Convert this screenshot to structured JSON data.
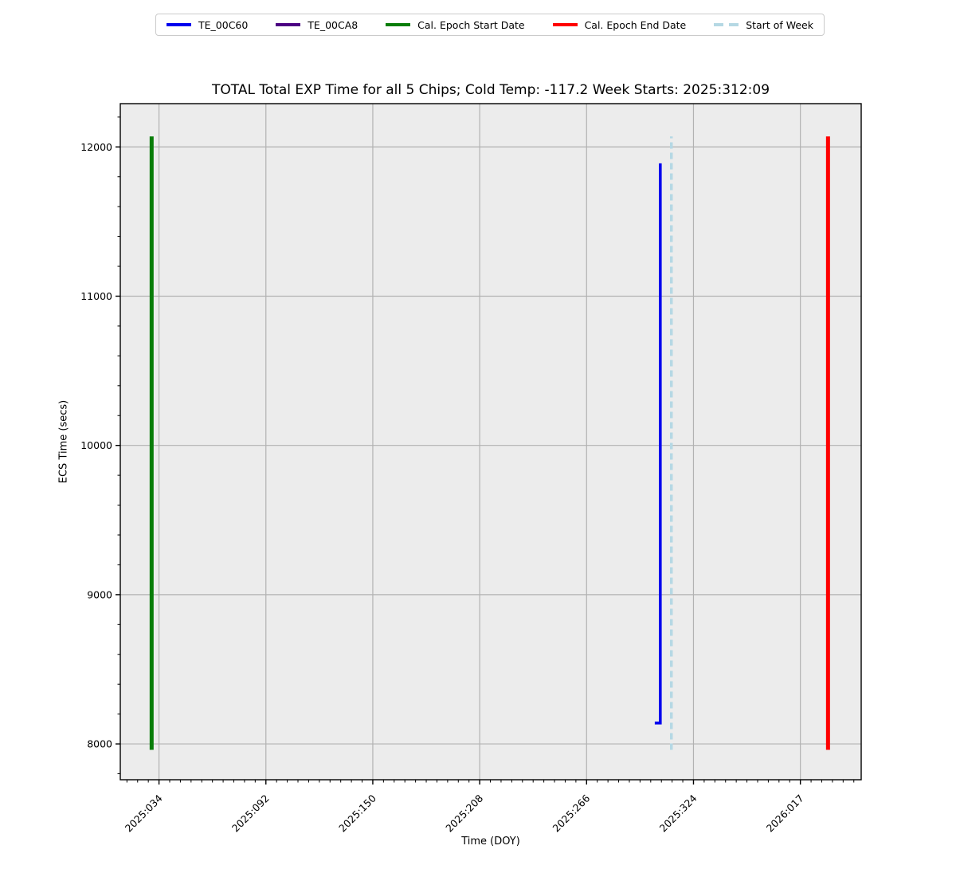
{
  "title": "TOTAL Total EXP Time for all 5 Chips; Cold Temp: -117.2 Week Starts: 2025:312:09",
  "legend": {
    "items": [
      {
        "label": "TE_00C60",
        "color": "#0000ee",
        "line_style": "solid"
      },
      {
        "label": "TE_00CA8",
        "color": "#4b0082",
        "line_style": "solid"
      },
      {
        "label": "Cal. Epoch Start Date",
        "color": "#087d08",
        "line_style": "solid"
      },
      {
        "label": "Cal. Epoch End Date",
        "color": "#ff0000",
        "line_style": "solid"
      },
      {
        "label": "Start of Week",
        "color": "#b5d8e4",
        "line_style": "dashed"
      }
    ]
  },
  "chart_data": {
    "type": "line",
    "title": "TOTAL Total EXP Time for all 5 Chips; Cold Temp: -117.2 Week Starts: 2025:312:09",
    "xlabel": "Time (DOY)",
    "ylabel": "ECS Time (secs)",
    "x_tick_labels": [
      "2025:034",
      "2025:092",
      "2025:150",
      "2025:208",
      "2025:266",
      "2025:324",
      "2026:017"
    ],
    "x_tick_days": [
      34,
      92,
      150,
      208,
      266,
      324,
      382
    ],
    "xlim_days": [
      13,
      415
    ],
    "y_ticks": [
      8000,
      9000,
      10000,
      11000,
      12000
    ],
    "ylim": [
      7760,
      12290
    ],
    "grid": true,
    "x_minor_divisions": 10,
    "y_minor_step": 200,
    "legend_position": "top-center-outside",
    "series": [
      {
        "name": "TE_00C60",
        "color": "#0000ee",
        "width": 3.5,
        "points": [
          {
            "doy": "2025:303",
            "day": 303,
            "value": 8140
          },
          {
            "doy": "2025:306",
            "day": 306,
            "value": 8140
          },
          {
            "doy": "2025:306",
            "day": 306,
            "value": 11890
          }
        ]
      },
      {
        "name": "TE_00CA8",
        "color": "#4b0082",
        "width": 3.5,
        "points": []
      }
    ],
    "vlines": [
      {
        "name": "Cal. Epoch Start Date",
        "doy": "2025:030",
        "day": 30,
        "color": "#087d08",
        "ymin": 7960,
        "ymax": 12070,
        "width": 5,
        "dash": null
      },
      {
        "name": "Cal. Epoch End Date",
        "doy": "2026:032",
        "day": 397,
        "color": "#ff0000",
        "ymin": 7960,
        "ymax": 12070,
        "width": 5,
        "dash": null
      },
      {
        "name": "Start of Week",
        "doy": "2025:312",
        "day": 312,
        "color": "#b5d8e4",
        "ymin": 7960,
        "ymax": 12070,
        "width": 3.5,
        "dash": "8 5"
      }
    ]
  },
  "colors": {
    "figure_bg": "#ffffff",
    "plot_bg": "#ececec",
    "grid": "#b2b2b2",
    "spine": "#000000",
    "tick": "#000000"
  }
}
